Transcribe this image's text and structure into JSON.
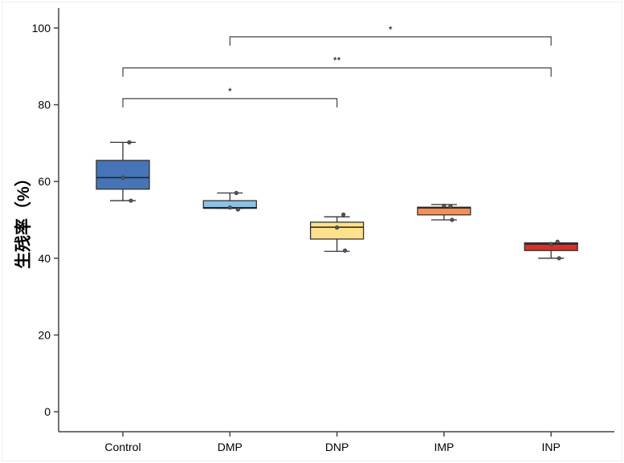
{
  "chart_data": {
    "type": "box",
    "title": "",
    "xlabel": "",
    "ylabel": "生残率（%）",
    "ylim": [
      -5.2,
      105.2
    ],
    "yticks": [
      0,
      20,
      40,
      60,
      80,
      100
    ],
    "categories": [
      "Control",
      "DMP",
      "DNP",
      "IMP",
      "INP"
    ],
    "colors": [
      "#4674b6",
      "#8ec0e3",
      "#ffe08c",
      "#f98e53",
      "#d8302a"
    ],
    "boxes": [
      {
        "name": "Control",
        "whisker_low": 55,
        "q1": 58,
        "median": 61,
        "q3": 65.5,
        "whisker_high": 70.2,
        "points": [
          70.2,
          61,
          55
        ]
      },
      {
        "name": "DMP",
        "whisker_low": 53,
        "q1": 53,
        "median": 53.2,
        "q3": 55,
        "whisker_high": 57,
        "points": [
          57,
          53.2,
          52.7
        ]
      },
      {
        "name": "DNP",
        "whisker_low": 41.8,
        "q1": 45,
        "median": 48.1,
        "q3": 49.4,
        "whisker_high": 50.8,
        "points": [
          51.4,
          48,
          42
        ]
      },
      {
        "name": "IMP",
        "whisker_low": 50,
        "q1": 51.3,
        "median": 53.1,
        "q3": 53.3,
        "whisker_high": 54,
        "points": [
          53.5,
          53.7,
          50
        ]
      },
      {
        "name": "INP",
        "whisker_low": 40,
        "q1": 42,
        "median": 43.7,
        "q3": 44,
        "whisker_high": 44,
        "points": [
          44.3,
          43.7,
          40
        ]
      }
    ],
    "significance": [
      {
        "from": "DMP",
        "to": "INP",
        "y": 97.7,
        "label": "*"
      },
      {
        "from": "Control",
        "to": "INP",
        "y": 89.6,
        "label": "**"
      },
      {
        "from": "Control",
        "to": "DNP",
        "y": 81.6,
        "label": "*"
      }
    ]
  }
}
